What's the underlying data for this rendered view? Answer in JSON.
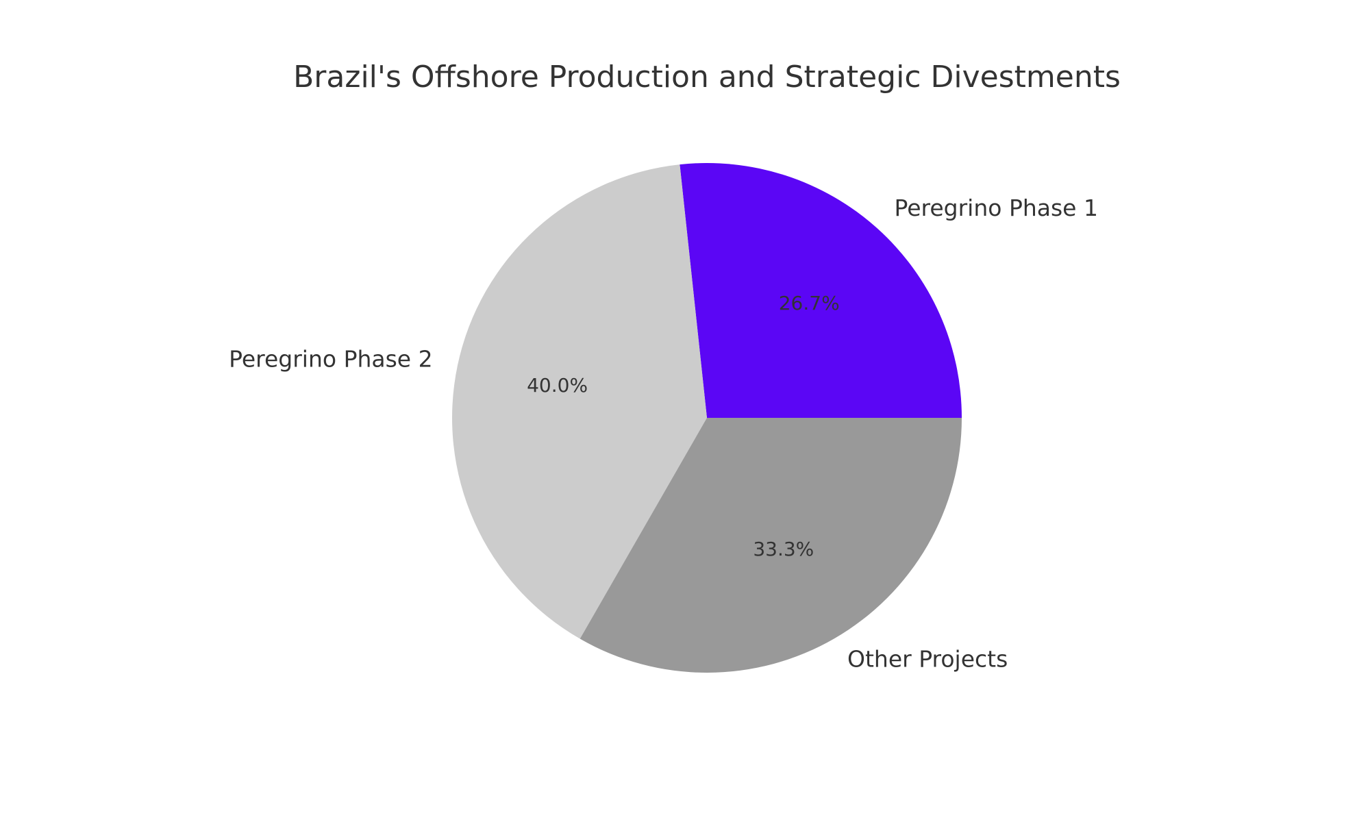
{
  "chart_data": {
    "type": "pie",
    "title": "Brazil's Offshore Production and Strategic Divestments",
    "start_angle_deg": 0,
    "direction": "counterclockwise",
    "slices": [
      {
        "label": "Peregrino Phase 1",
        "value": 26.7,
        "percent_label": "26.7%",
        "color": "#5b06f5"
      },
      {
        "label": "Peregrino Phase 2",
        "value": 40.0,
        "percent_label": "40.0%",
        "color": "#cccccc"
      },
      {
        "label": "Other Projects",
        "value": 33.3,
        "percent_label": "33.3%",
        "color": "#999999"
      }
    ]
  }
}
